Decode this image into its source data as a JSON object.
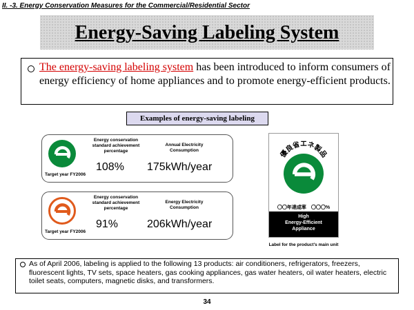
{
  "section_header": "II. -3. Energy Conservation Measures for the Commercial/Residential Sector",
  "title": "Energy-Saving Labeling System",
  "intro": {
    "highlight": "The energy-saving labeling system",
    "rest": " has been introduced to inform consumers of energy efficiency of home appliances and to promote energy-efficient products."
  },
  "examples_header": "Examples of energy-saving labeling",
  "labels": [
    {
      "mark_color": "#0a8a3a",
      "target_year": "Target year FY2006",
      "achievement_label": "Energy conservation standard achievement percentage",
      "achievement_value": "108%",
      "consumption_label": "Annual Electricity Consumption",
      "consumption_value": "175kWh/year"
    },
    {
      "mark_color": "#e05a1c",
      "target_year": "Target year FY2006",
      "achievement_label": "Energy conservation standard achievement percentage",
      "achievement_value": "91%",
      "consumption_label": "Energy Electricity Consumption",
      "consumption_value": "206kWh/year"
    }
  ],
  "main_label": {
    "jp_text": "優良省エネ製品",
    "achievement": "〇〇年達成率　〇〇〇%",
    "line1": "High",
    "line2": "Energy-Efficient",
    "line3": "Appliance",
    "mark_color": "#0a8a3a",
    "caption": "Label for the product's main unit"
  },
  "bottom_text": "As of April 2006, labeling is applied to the following 13 products: air conditioners, refrigerators, freezers, fluorescent lights, TV sets, space heaters, gas cooking appliances, gas water heaters, oil water heaters, electric toilet seats, computers, magnetic disks, and transformers.",
  "page_number": "34"
}
